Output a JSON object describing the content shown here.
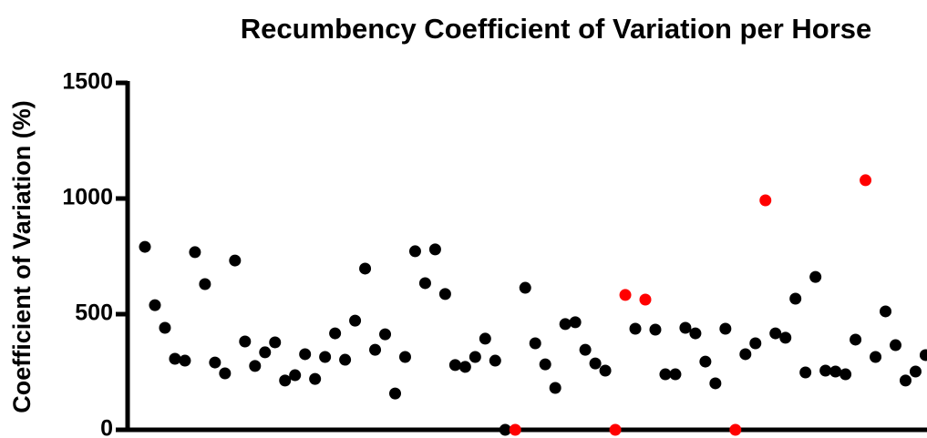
{
  "chart_data": {
    "type": "scatter",
    "title": "Recumbency Coefficient of Variation per Horse",
    "y_label": "Coefficient of Variation (%)",
    "categories": [
      null,
      null,
      null,
      null,
      null,
      null,
      null,
      null,
      null,
      null,
      null,
      null,
      null,
      null,
      null,
      null,
      null,
      null,
      null,
      null,
      null,
      null,
      null,
      null,
      null,
      null,
      null,
      null,
      null,
      null,
      null,
      null,
      null,
      null,
      null,
      null,
      null,
      null,
      null,
      null,
      null,
      null,
      null,
      null,
      null,
      null,
      null,
      null,
      null,
      null,
      null,
      null,
      null,
      null,
      null,
      null,
      null,
      null,
      null,
      null,
      null,
      null,
      null,
      null,
      null,
      null,
      null,
      null,
      null,
      null,
      null,
      null,
      null,
      null,
      null,
      null,
      null,
      null,
      null
    ],
    "values": [
      791,
      539,
      441,
      307,
      299,
      768,
      630,
      291,
      244,
      732,
      382,
      276,
      335,
      378,
      213,
      236,
      327,
      220,
      315,
      417,
      303,
      472,
      697,
      346,
      413,
      157,
      315,
      772,
      634,
      780,
      587,
      280,
      272,
      315,
      394,
      299,
      0,
      0,
      614,
      374,
      283,
      181,
      457,
      465,
      346,
      287,
      256,
      0,
      583,
      437,
      563,
      433,
      240,
      240,
      441,
      417,
      295,
      201,
      437,
      0,
      327,
      374,
      992,
      417,
      398,
      567,
      248,
      661,
      256,
      252,
      240,
      390,
      1079,
      315,
      512,
      366,
      213,
      252,
      323
    ],
    "colors": [
      "#000000",
      "#000000",
      "#000000",
      "#000000",
      "#000000",
      "#000000",
      "#000000",
      "#000000",
      "#000000",
      "#000000",
      "#000000",
      "#000000",
      "#000000",
      "#000000",
      "#000000",
      "#000000",
      "#000000",
      "#000000",
      "#000000",
      "#000000",
      "#000000",
      "#000000",
      "#000000",
      "#000000",
      "#000000",
      "#000000",
      "#000000",
      "#000000",
      "#000000",
      "#000000",
      "#000000",
      "#000000",
      "#000000",
      "#000000",
      "#000000",
      "#000000",
      "#000000",
      "#ff0000",
      "#000000",
      "#000000",
      "#000000",
      "#000000",
      "#000000",
      "#000000",
      "#000000",
      "#000000",
      "#000000",
      "#ff0000",
      "#ff0000",
      "#000000",
      "#ff0000",
      "#000000",
      "#000000",
      "#000000",
      "#000000",
      "#000000",
      "#000000",
      "#000000",
      "#000000",
      "#ff0000",
      "#000000",
      "#000000",
      "#ff0000",
      "#000000",
      "#000000",
      "#000000",
      "#000000",
      "#000000",
      "#000000",
      "#000000",
      "#000000",
      "#000000",
      "#ff0000",
      "#000000",
      "#000000",
      "#000000",
      "#000000",
      "#000000",
      "#000000"
    ],
    "ylim": [
      0,
      1500
    ],
    "yticks": [
      0,
      500,
      1000,
      1500
    ],
    "grid": false
  }
}
